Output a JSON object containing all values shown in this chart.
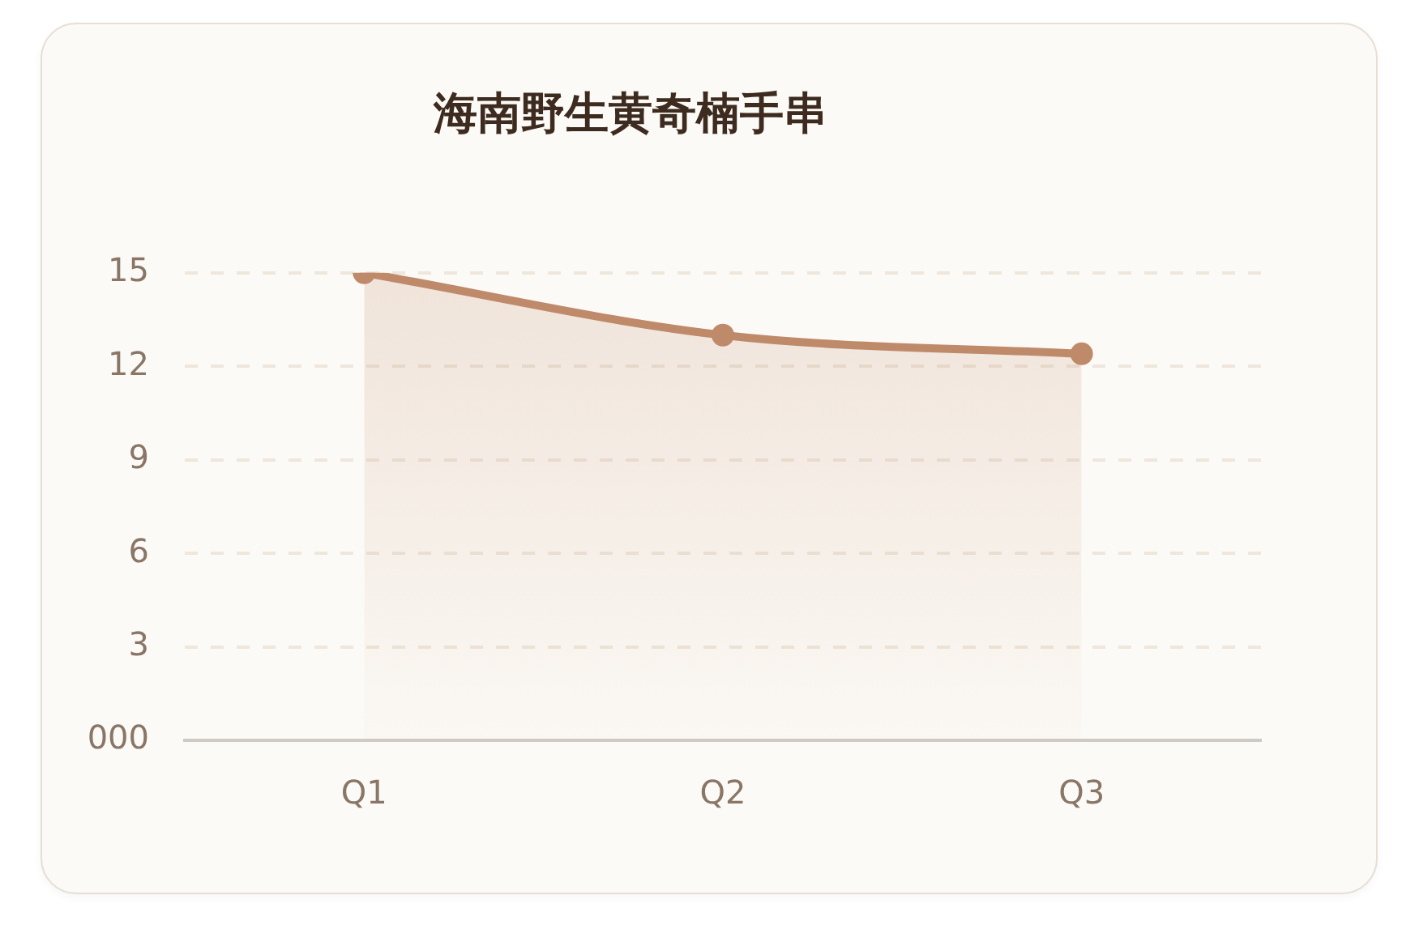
{
  "chart_data": {
    "type": "area",
    "title": "海南野生黄奇楠手串",
    "categories": [
      "Q1",
      "Q2",
      "Q3"
    ],
    "series": [
      {
        "color": "#bf8a6a",
        "values": [
          15,
          13,
          12.4
        ]
      }
    ],
    "ylim": [
      0,
      15
    ],
    "yticks": [
      {
        "value": 0,
        "label": "000"
      },
      3,
      6,
      9,
      12,
      15
    ],
    "grid": "y",
    "legend": false,
    "marker": "circle"
  }
}
